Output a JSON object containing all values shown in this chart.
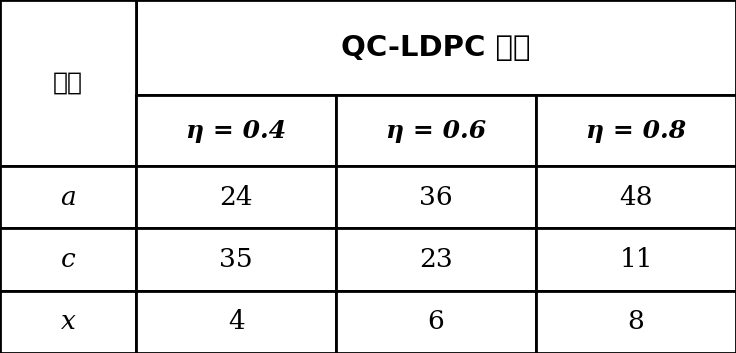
{
  "title": "QC-LDPC 码率",
  "col_header_label": "参数",
  "col_headers": [
    "η = 0.4",
    "η = 0.6",
    "η = 0.8"
  ],
  "row_labels": [
    "a",
    "c",
    "x"
  ],
  "table_data": [
    [
      "24",
      "36",
      "48"
    ],
    [
      "35",
      "23",
      "11"
    ],
    [
      "4",
      "6",
      "8"
    ]
  ],
  "bg_color": "#ffffff",
  "border_color": "#000000",
  "text_color": "#000000",
  "title_fontsize": 21,
  "header_fontsize": 18,
  "cell_fontsize": 19,
  "row_label_fontsize": 19,
  "fig_width": 7.36,
  "fig_height": 3.53
}
